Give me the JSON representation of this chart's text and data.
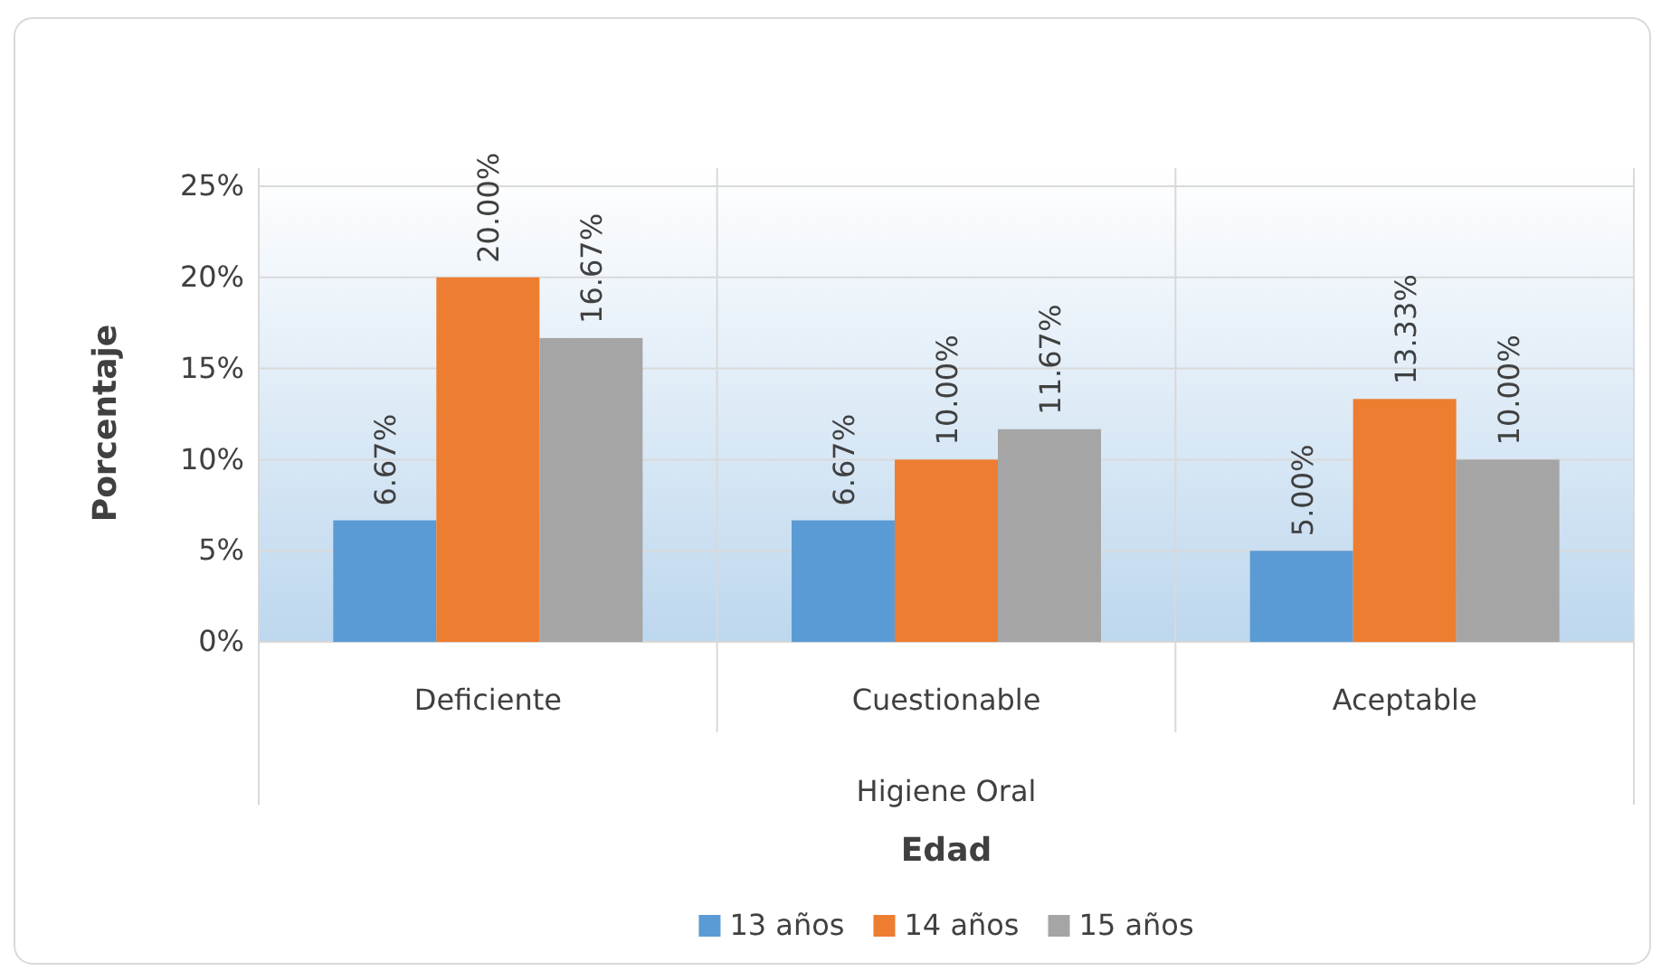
{
  "chart_data": {
    "type": "bar",
    "ylabel": "Porcentaje",
    "xlabel": "Edad",
    "categories": [
      "Deficiente",
      "Cuestionable",
      "Aceptable"
    ],
    "series": [
      {
        "name": "13 años",
        "color": "#5b9bd5",
        "values": [
          6.67,
          6.67,
          5.0
        ],
        "value_labels": [
          "6.67%",
          "6.67%",
          "5.00%"
        ]
      },
      {
        "name": "14 años",
        "color": "#ed7d31",
        "values": [
          20.0,
          10.0,
          13.33
        ],
        "value_labels": [
          "20.00%",
          "10.00%",
          "13.33%"
        ]
      },
      {
        "name": "15 años",
        "color": "#a5a5a5",
        "values": [
          16.67,
          11.67,
          10.0
        ],
        "value_labels": [
          "16.67%",
          "11.67%",
          "10.00%"
        ]
      }
    ],
    "ylim": [
      0,
      25
    ],
    "yticks": [
      {
        "value": 0,
        "label": "0%"
      },
      {
        "value": 5,
        "label": "5%"
      },
      {
        "value": 10,
        "label": "10%"
      },
      {
        "value": 15,
        "label": "15%"
      },
      {
        "value": 20,
        "label": "20%"
      },
      {
        "value": 25,
        "label": "25%"
      }
    ],
    "grid": "y",
    "legend": "bottom",
    "annotations": [
      "Higiene Oral"
    ]
  }
}
